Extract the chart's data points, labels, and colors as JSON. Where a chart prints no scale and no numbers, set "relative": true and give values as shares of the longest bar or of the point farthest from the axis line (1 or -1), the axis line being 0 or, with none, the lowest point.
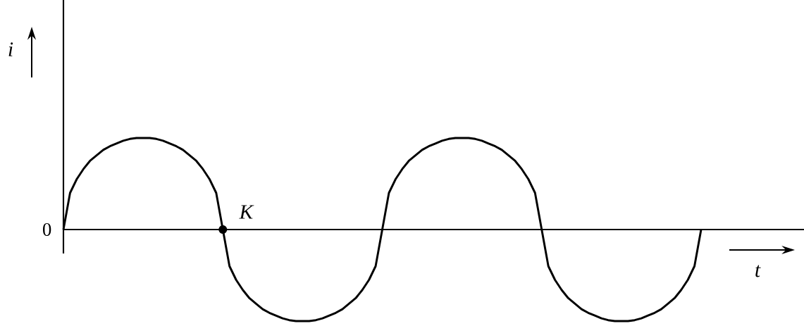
{
  "chart_data": {
    "type": "line",
    "relative": true,
    "xlabel": "t",
    "ylabel": "i",
    "categories": [
      null,
      null,
      null,
      null,
      null,
      null,
      null,
      null,
      null,
      null,
      null,
      null,
      null,
      null,
      null,
      null,
      null,
      null,
      null,
      null,
      null,
      null,
      null,
      null,
      null,
      null,
      null,
      null,
      null,
      null,
      null,
      null,
      null,
      null,
      null,
      null,
      null,
      null,
      null,
      null,
      null,
      null,
      null,
      null,
      null,
      null,
      null,
      null,
      null,
      null,
      null,
      null,
      null,
      null,
      null,
      null,
      null,
      null,
      null,
      null,
      null,
      null,
      null,
      null,
      null,
      null,
      null,
      null,
      null,
      null,
      null,
      null,
      null,
      null,
      null,
      null,
      null,
      null,
      null,
      null,
      null,
      null,
      null,
      null,
      null,
      null,
      null,
      null,
      null,
      null,
      null,
      null,
      null,
      null,
      null,
      null,
      null
    ],
    "annotations": [
      "0",
      "K"
    ],
    "line_style": "solid",
    "marker": "none",
    "series": [
      {
        "color": "#000000",
        "values": [
          0,
          0.4,
          0.55,
          0.66,
          0.75,
          0.81,
          0.87,
          0.91,
          0.94,
          0.97,
          0.99,
          1,
          1,
          1,
          0.99,
          0.97,
          0.94,
          0.91,
          0.87,
          0.81,
          0.75,
          0.66,
          0.55,
          0.4,
          0,
          -0.4,
          -0.55,
          -0.66,
          -0.75,
          -0.81,
          -0.87,
          -0.91,
          -0.94,
          -0.97,
          -0.99,
          -1,
          -1,
          -1,
          -0.99,
          -0.97,
          -0.94,
          -0.91,
          -0.87,
          -0.81,
          -0.75,
          -0.66,
          -0.55,
          -0.4,
          0,
          0.4,
          0.55,
          0.66,
          0.75,
          0.81,
          0.87,
          0.91,
          0.94,
          0.97,
          0.99,
          1,
          1,
          1,
          0.99,
          0.97,
          0.94,
          0.91,
          0.87,
          0.81,
          0.75,
          0.66,
          0.55,
          0.4,
          0,
          -0.4,
          -0.55,
          -0.66,
          -0.75,
          -0.81,
          -0.87,
          -0.91,
          -0.94,
          -0.97,
          -0.99,
          -1,
          -1,
          -1,
          -0.99,
          -0.97,
          -0.94,
          -0.91,
          -0.87,
          -0.81,
          -0.75,
          -0.66,
          -0.55,
          -0.4,
          0
        ]
      }
    ]
  }
}
